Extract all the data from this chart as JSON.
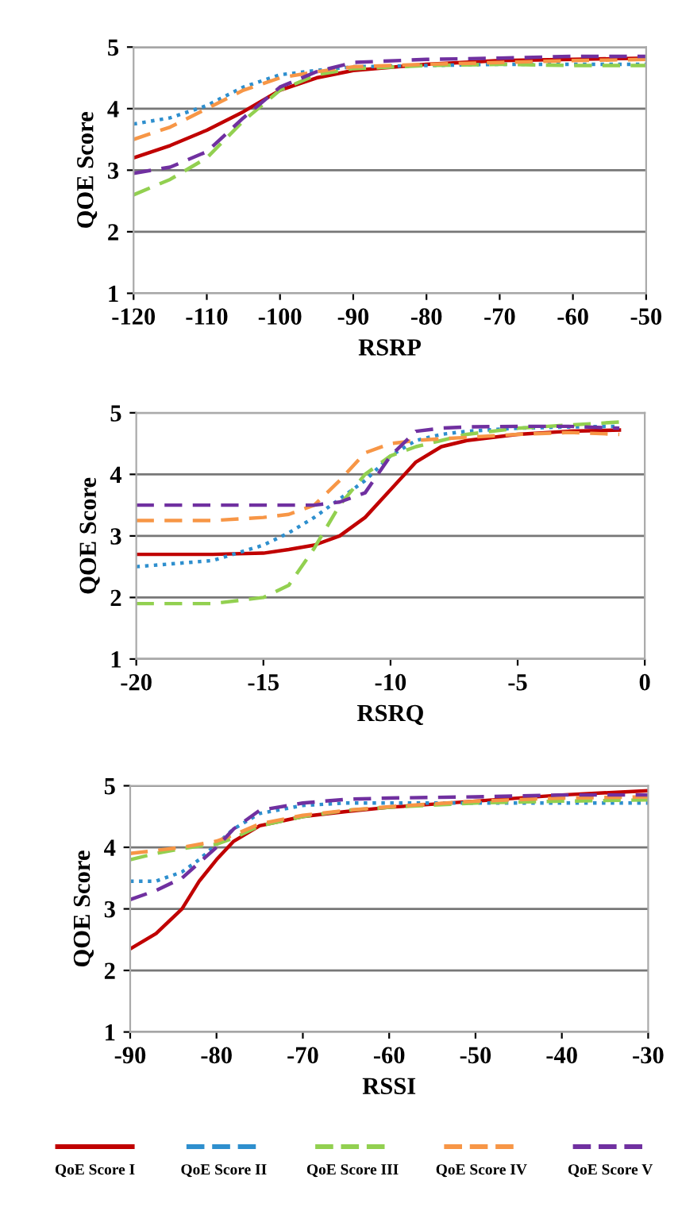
{
  "chart_data": [
    {
      "type": "line",
      "xlabel": "RSRP",
      "ylabel": "QOE Score",
      "x": [
        -120,
        -115,
        -110,
        -105,
        -100,
        -95,
        -90,
        -80,
        -70,
        -60,
        -50
      ],
      "xlim": [
        -120,
        -50
      ],
      "xticks": [
        -120,
        -110,
        -100,
        -90,
        -80,
        -70,
        -60,
        -50
      ],
      "ylim": [
        1,
        5
      ],
      "yticks": [
        1,
        2,
        3,
        4,
        5
      ],
      "grid": "y",
      "legend": false,
      "series": [
        {
          "color": "#c00000",
          "line_style": "solid",
          "values": [
            3.2,
            3.4,
            3.65,
            3.95,
            4.3,
            4.5,
            4.62,
            4.72,
            4.78,
            4.8,
            4.82
          ]
        },
        {
          "color": "#2e8fce",
          "line_style": "dotted",
          "values": [
            3.75,
            3.85,
            4.05,
            4.35,
            4.55,
            4.62,
            4.68,
            4.7,
            4.72,
            4.72,
            4.72
          ]
        },
        {
          "color": "#92d050",
          "line_style": "dashed",
          "values": [
            2.6,
            2.85,
            3.2,
            3.8,
            4.3,
            4.55,
            4.65,
            4.7,
            4.72,
            4.7,
            4.7
          ]
        },
        {
          "color": "#f79646",
          "line_style": "dashed",
          "values": [
            3.5,
            3.7,
            4.0,
            4.3,
            4.5,
            4.6,
            4.68,
            4.72,
            4.75,
            4.78,
            4.8
          ]
        },
        {
          "color": "#7030a0",
          "line_style": "dashed",
          "values": [
            2.95,
            3.05,
            3.3,
            3.85,
            4.35,
            4.6,
            4.75,
            4.8,
            4.82,
            4.85,
            4.85
          ]
        }
      ]
    },
    {
      "type": "line",
      "xlabel": "RSRQ",
      "ylabel": "QOE Score",
      "x": [
        -20,
        -17,
        -15,
        -14,
        -13,
        -12,
        -11,
        -10,
        -9,
        -8,
        -7,
        -5,
        -3,
        -1
      ],
      "xlim": [
        -20,
        0
      ],
      "xticks": [
        -20,
        -15,
        -10,
        -5,
        0
      ],
      "ylim": [
        1,
        5
      ],
      "yticks": [
        1,
        2,
        3,
        4,
        5
      ],
      "grid": "y",
      "legend": false,
      "series": [
        {
          "color": "#c00000",
          "line_style": "solid",
          "values": [
            2.7,
            2.7,
            2.72,
            2.78,
            2.85,
            3.0,
            3.3,
            3.75,
            4.2,
            4.45,
            4.55,
            4.65,
            4.7,
            4.72
          ]
        },
        {
          "color": "#2e8fce",
          "line_style": "dotted",
          "values": [
            2.5,
            2.6,
            2.85,
            3.05,
            3.3,
            3.6,
            3.9,
            4.3,
            4.55,
            4.65,
            4.7,
            4.75,
            4.77,
            4.78
          ]
        },
        {
          "color": "#92d050",
          "line_style": "dashed",
          "values": [
            1.9,
            1.9,
            2.0,
            2.2,
            2.8,
            3.5,
            4.0,
            4.3,
            4.45,
            4.55,
            4.65,
            4.75,
            4.8,
            4.85
          ]
        },
        {
          "color": "#f79646",
          "line_style": "dashed",
          "values": [
            3.25,
            3.25,
            3.3,
            3.35,
            3.5,
            3.9,
            4.35,
            4.5,
            4.55,
            4.58,
            4.6,
            4.65,
            4.68,
            4.65
          ]
        },
        {
          "color": "#7030a0",
          "line_style": "dashed",
          "values": [
            3.5,
            3.5,
            3.5,
            3.5,
            3.5,
            3.55,
            3.7,
            4.3,
            4.7,
            4.75,
            4.77,
            4.78,
            4.78,
            4.75
          ]
        }
      ]
    },
    {
      "type": "line",
      "xlabel": "RSSI",
      "ylabel": "QOE Score",
      "x": [
        -90,
        -87,
        -84,
        -82,
        -80,
        -78,
        -75,
        -70,
        -65,
        -60,
        -50,
        -40,
        -30
      ],
      "xlim": [
        -90,
        -30
      ],
      "xticks": [
        -90,
        -80,
        -70,
        -60,
        -50,
        -40,
        -30
      ],
      "ylim": [
        1,
        5
      ],
      "yticks": [
        1,
        2,
        3,
        4,
        5
      ],
      "grid": "y",
      "legend": "bottom",
      "series": [
        {
          "name": "QoE Score I",
          "color": "#c00000",
          "line_style": "solid",
          "values": [
            2.35,
            2.6,
            3.0,
            3.45,
            3.8,
            4.1,
            4.35,
            4.5,
            4.58,
            4.65,
            4.75,
            4.85,
            4.92
          ]
        },
        {
          "name": "QoE Score II",
          "color": "#2e8fce",
          "line_style": "dotted",
          "values": [
            3.45,
            3.45,
            3.6,
            3.8,
            4.05,
            4.3,
            4.55,
            4.68,
            4.72,
            4.72,
            4.72,
            4.72,
            4.72
          ]
        },
        {
          "name": "QoE Score III",
          "color": "#92d050",
          "line_style": "dashed",
          "values": [
            3.8,
            3.9,
            3.98,
            4.02,
            4.05,
            4.15,
            4.35,
            4.5,
            4.6,
            4.65,
            4.72,
            4.75,
            4.77
          ]
        },
        {
          "name": "QoE Score IV",
          "color": "#f79646",
          "line_style": "dashed",
          "values": [
            3.9,
            3.95,
            4.0,
            4.05,
            4.1,
            4.2,
            4.38,
            4.52,
            4.6,
            4.66,
            4.75,
            4.8,
            4.82
          ]
        },
        {
          "name": "QoE Score V",
          "color": "#7030a0",
          "line_style": "dashed",
          "values": [
            3.15,
            3.3,
            3.5,
            3.75,
            4.0,
            4.3,
            4.6,
            4.72,
            4.78,
            4.8,
            4.82,
            4.85,
            4.85
          ]
        }
      ]
    }
  ]
}
